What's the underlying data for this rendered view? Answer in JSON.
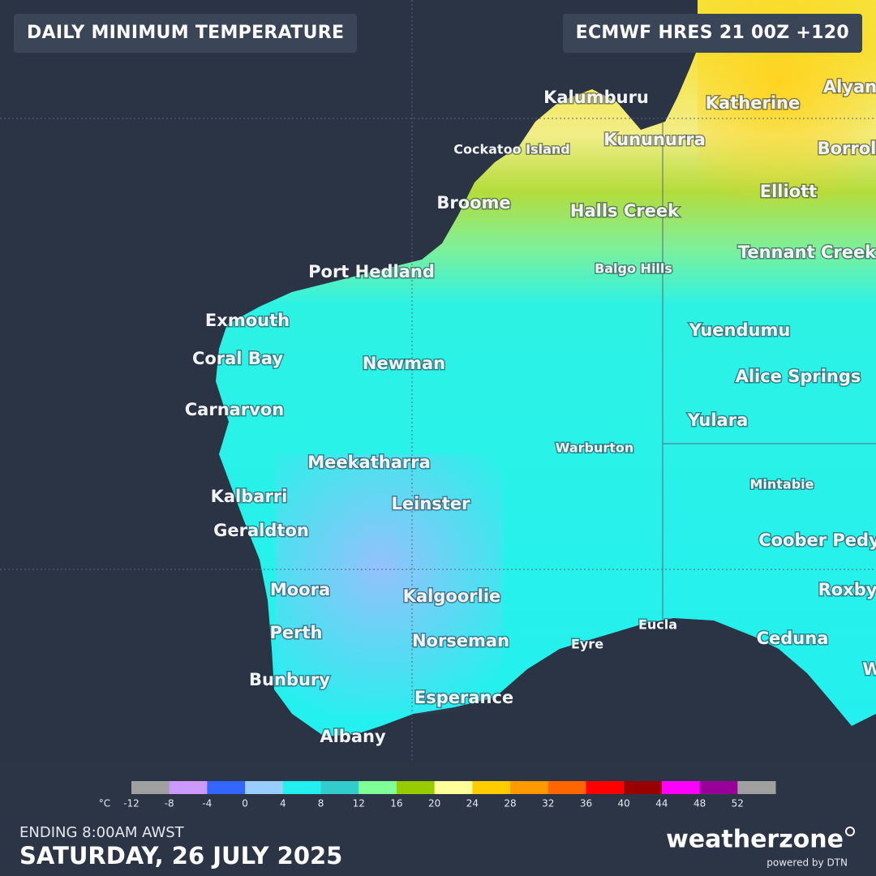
{
  "header": {
    "title": "DAILY MINIMUM TEMPERATURE",
    "model": "ECMWF HRES 21 00Z +120"
  },
  "places": [
    "Kalumburu",
    "Katherine",
    "Alyan",
    "Cockatoo Island",
    "Kununurra",
    "Borrol",
    "Broome",
    "Halls Creek",
    "Elliott",
    "Tennant Creek",
    "Port Hedland",
    "Balgo Hills",
    "Exmouth",
    "Yuendumu",
    "Coral Bay",
    "Newman",
    "Alice Springs",
    "Carnarvon",
    "Yulara",
    "Warburton",
    "Meekatharra",
    "Mintabie",
    "Kalbarri",
    "Leinster",
    "Geraldton",
    "Coober Pedy",
    "Moora",
    "Kalgoorlie",
    "Roxby",
    "Eucla",
    "Perth",
    "Ceduna",
    "Norseman",
    "Eyre",
    "Bunbury",
    "W",
    "Esperance",
    "Albany"
  ],
  "legend": {
    "unit": "°C",
    "ticks": [
      -12,
      -8,
      -4,
      0,
      4,
      8,
      12,
      16,
      20,
      24,
      28,
      32,
      36,
      40,
      44,
      48,
      52
    ],
    "colors": [
      "#a0a0a0",
      "#cc99ff",
      "#3366ff",
      "#99ccff",
      "#22f0f0",
      "#33cccc",
      "#80ff99",
      "#99cc00",
      "#ffff99",
      "#ffcc00",
      "#ff9900",
      "#ff6600",
      "#ff0000",
      "#990000",
      "#ff00ff",
      "#990099",
      "#a0a0a0"
    ]
  },
  "footer": {
    "ending": "ENDING 8:00AM AWST",
    "date": "SATURDAY, 26 JULY 2025",
    "logo": "weatherzone",
    "powered_by": "powered by DTN"
  }
}
